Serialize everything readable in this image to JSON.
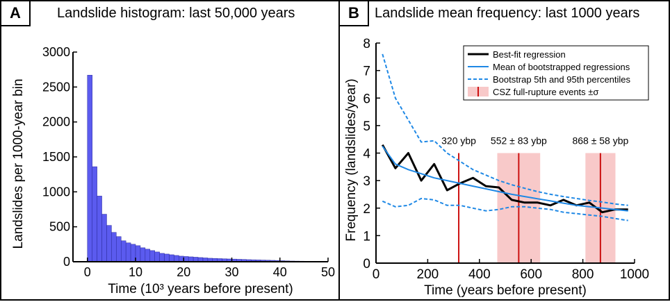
{
  "panels": {
    "a": {
      "label": "A",
      "title": "Landslide histogram: last 50,000 years"
    },
    "b": {
      "label": "B",
      "title": "Landslide mean frequency: last 1000 years"
    }
  },
  "chart_data": [
    {
      "type": "bar",
      "title": "Landslide histogram: last 50,000 years",
      "xlabel": "Time (10³ years before present)",
      "ylabel": "Landslides per 1000-year bin",
      "xlim": [
        -3,
        50
      ],
      "ylim": [
        0,
        3000
      ],
      "xticks": [
        0,
        10,
        20,
        30,
        40,
        50
      ],
      "yticks": [
        0,
        500,
        1000,
        1500,
        2000,
        2500,
        3000
      ],
      "bin_start": 0,
      "bin_width": 1,
      "color": "#5b5bef",
      "values": [
        2670,
        1360,
        940,
        680,
        520,
        420,
        360,
        300,
        270,
        250,
        230,
        200,
        180,
        160,
        140,
        120,
        110,
        100,
        90,
        80,
        75,
        70,
        65,
        60,
        55,
        50,
        48,
        45,
        42,
        40,
        38,
        35,
        33,
        30,
        28,
        26,
        24,
        22,
        20,
        18,
        15,
        12,
        10,
        9,
        8,
        7,
        6,
        5,
        4,
        3
      ]
    },
    {
      "type": "line",
      "title": "Landslide mean frequency: last 1000 years",
      "xlabel": "Time (years before present)",
      "ylabel": "Frequency (landslides/year)",
      "xlim": [
        0,
        1000
      ],
      "ylim": [
        0,
        8
      ],
      "xticks": [
        0,
        200,
        400,
        600,
        800,
        1000
      ],
      "yticks": [
        0,
        1,
        2,
        3,
        4,
        5,
        6,
        7,
        8
      ],
      "legend_position": "top-right",
      "series": [
        {
          "name": "Best-fit regression",
          "color": "#000000",
          "style": "solid",
          "x": [
            25,
            75,
            125,
            175,
            225,
            275,
            325,
            375,
            425,
            475,
            525,
            575,
            625,
            675,
            725,
            775,
            825,
            875,
            925,
            975
          ],
          "y": [
            4.3,
            3.45,
            4.0,
            3.0,
            3.6,
            2.65,
            2.9,
            3.1,
            2.8,
            2.75,
            2.3,
            2.2,
            2.2,
            2.1,
            2.3,
            2.1,
            2.2,
            1.85,
            1.95,
            1.95
          ]
        },
        {
          "name": "Mean of bootstrapped regressions",
          "color": "#1e88e5",
          "style": "solid",
          "x": [
            25,
            75,
            125,
            175,
            225,
            275,
            325,
            375,
            425,
            475,
            525,
            575,
            625,
            675,
            725,
            775,
            825,
            875,
            925,
            975
          ],
          "y": [
            4.25,
            3.6,
            3.4,
            3.25,
            3.1,
            3.0,
            2.9,
            2.8,
            2.7,
            2.6,
            2.5,
            2.42,
            2.34,
            2.26,
            2.18,
            2.1,
            2.05,
            2.0,
            1.95,
            1.9
          ]
        },
        {
          "name": "Bootstrap 5th and 95th percentiles",
          "color": "#1e88e5",
          "style": "dashed",
          "x": [
            25,
            75,
            125,
            175,
            225,
            275,
            325,
            375,
            425,
            475,
            525,
            575,
            625,
            675,
            725,
            775,
            825,
            875,
            925,
            975
          ],
          "y": [
            7.6,
            6.0,
            5.2,
            4.4,
            4.45,
            4.0,
            3.7,
            3.4,
            3.2,
            3.0,
            2.85,
            2.72,
            2.6,
            2.5,
            2.42,
            2.35,
            2.28,
            2.22,
            2.15,
            2.1
          ]
        },
        {
          "name": "",
          "color": "#1e88e5",
          "style": "dashed",
          "x": [
            25,
            75,
            125,
            175,
            225,
            275,
            325,
            375,
            425,
            475,
            525,
            575,
            625,
            675,
            725,
            775,
            825,
            875,
            925,
            975
          ],
          "y": [
            2.25,
            2.05,
            2.1,
            2.35,
            2.3,
            2.1,
            2.1,
            2.0,
            1.9,
            1.95,
            2.05,
            2.05,
            2.0,
            1.95,
            1.85,
            1.8,
            1.75,
            1.7,
            1.62,
            1.55
          ]
        }
      ],
      "events": {
        "name": "CSZ full-rupture events ±σ",
        "line_color": "#cc1111",
        "band_color": "#f8c9c9",
        "items": [
          {
            "label": "320 ybp",
            "center": 320,
            "sigma": 0
          },
          {
            "label": "552 ± 83 ybp",
            "center": 552,
            "sigma": 83
          },
          {
            "label": "868 ± 58 ybp",
            "center": 868,
            "sigma": 58
          }
        ]
      }
    }
  ]
}
